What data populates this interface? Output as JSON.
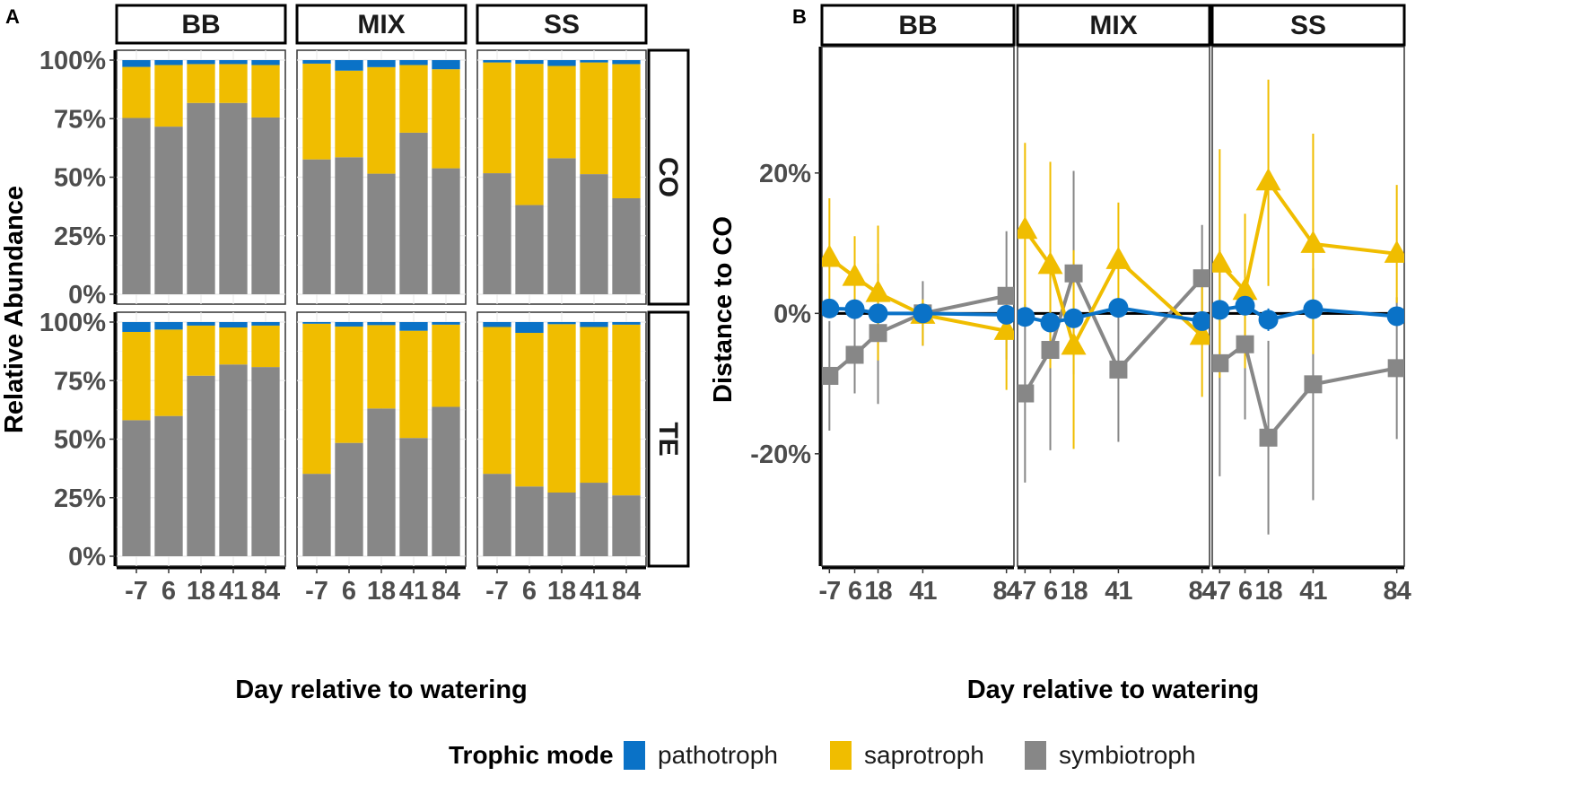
{
  "figure": {
    "panel_a_letter": "A",
    "panel_b_letter": "B"
  },
  "colors": {
    "pathotroph": "#0a72c7",
    "saprotroph": "#f0bd00",
    "symbiotroph": "#878787",
    "zero_line": "#000000"
  },
  "legend": {
    "title": "Trophic mode",
    "items": [
      {
        "key": "pathotroph",
        "label": "pathotroph"
      },
      {
        "key": "saprotroph",
        "label": "saprotroph"
      },
      {
        "key": "symbiotroph",
        "label": "symbiotroph"
      }
    ],
    "position": "bottom"
  },
  "chart_data": [
    {
      "type": "bar",
      "stacked": true,
      "panel": "A",
      "xlabel": "Day relative to watering",
      "ylabel": "Relative Abundance",
      "ylim": [
        0,
        100
      ],
      "y_ticks": [
        "0%",
        "25%",
        "50%",
        "75%",
        "100%"
      ],
      "categories": [
        "-7",
        "6",
        "18",
        "41",
        "84"
      ],
      "facet_columns": [
        "BB",
        "MIX",
        "SS"
      ],
      "facet_rows": [
        "CO",
        "TE"
      ],
      "units": "percent",
      "facets": [
        {
          "col": "BB",
          "row": "CO",
          "series": [
            {
              "name": "symbiotroph",
              "values": [
                75.3,
                71.6,
                81.7,
                81.7,
                75.5
              ]
            },
            {
              "name": "saprotroph",
              "values": [
                21.8,
                26.3,
                16.6,
                16.6,
                22.4
              ]
            },
            {
              "name": "pathotroph",
              "values": [
                2.9,
                2.1,
                1.7,
                1.7,
                2.1
              ]
            }
          ]
        },
        {
          "col": "MIX",
          "row": "CO",
          "series": [
            {
              "name": "symbiotroph",
              "values": [
                57.6,
                58.5,
                51.5,
                69.0,
                53.8
              ]
            },
            {
              "name": "saprotroph",
              "values": [
                40.9,
                37.0,
                45.5,
                28.9,
                42.3
              ]
            },
            {
              "name": "pathotroph",
              "values": [
                1.5,
                4.5,
                3.0,
                2.1,
                3.9
              ]
            }
          ]
        },
        {
          "col": "SS",
          "row": "CO",
          "series": [
            {
              "name": "symbiotroph",
              "values": [
                51.7,
                38.1,
                58.1,
                51.3,
                41.0
              ]
            },
            {
              "name": "saprotroph",
              "values": [
                47.3,
                60.3,
                39.4,
                47.7,
                57.3
              ]
            },
            {
              "name": "pathotroph",
              "values": [
                1.0,
                1.6,
                2.5,
                1.0,
                1.7
              ]
            }
          ]
        },
        {
          "col": "BB",
          "row": "TE",
          "series": [
            {
              "name": "symbiotroph",
              "values": [
                58.1,
                59.9,
                77.1,
                81.9,
                80.8
              ]
            },
            {
              "name": "saprotroph",
              "values": [
                37.7,
                36.9,
                21.4,
                15.8,
                17.7
              ]
            },
            {
              "name": "pathotroph",
              "values": [
                4.2,
                3.2,
                1.5,
                2.3,
                1.5
              ]
            }
          ]
        },
        {
          "col": "MIX",
          "row": "TE",
          "series": [
            {
              "name": "symbiotroph",
              "values": [
                35.2,
                48.4,
                63.1,
                50.5,
                63.8
              ]
            },
            {
              "name": "saprotroph",
              "values": [
                64.1,
                49.7,
                35.6,
                45.8,
                35.1
              ]
            },
            {
              "name": "pathotroph",
              "values": [
                0.7,
                1.9,
                1.3,
                3.7,
                1.1
              ]
            }
          ]
        },
        {
          "col": "SS",
          "row": "TE",
          "series": [
            {
              "name": "symbiotroph",
              "values": [
                35.2,
                29.8,
                27.2,
                31.4,
                26.0
              ]
            },
            {
              "name": "saprotroph",
              "values": [
                62.7,
                65.6,
                71.9,
                66.5,
                72.9
              ]
            },
            {
              "name": "pathotroph",
              "values": [
                2.1,
                4.6,
                0.9,
                2.1,
                1.1
              ]
            }
          ]
        }
      ]
    },
    {
      "type": "line",
      "panel": "B",
      "xlabel": "Day relative to watering",
      "ylabel": "Distance to CO",
      "ylim": [
        -36,
        38
      ],
      "xlim": [
        -9,
        86
      ],
      "y_ticks": [
        {
          "value": -20,
          "label": "-20%"
        },
        {
          "value": 0,
          "label": "0%"
        },
        {
          "value": 20,
          "label": "20%"
        }
      ],
      "x": [
        -7,
        6,
        18,
        41,
        84
      ],
      "x_tick_labels": [
        "-7",
        "6",
        "18",
        "41",
        "84"
      ],
      "reference_line": 0,
      "units": "percent",
      "facets": [
        {
          "col": "BB",
          "series": [
            {
              "name": "pathotroph",
              "marker": "circle",
              "values": [
                0.7,
                0.6,
                0.0,
                0.0,
                -0.2
              ],
              "err_low": [
                -0.5,
                -0.6,
                -1.0,
                -1.0,
                -1.2
              ],
              "err_high": [
                1.9,
                1.8,
                1.0,
                1.0,
                0.8
              ]
            },
            {
              "name": "saprotroph",
              "marker": "triangle",
              "values": [
                7.9,
                5.2,
                2.9,
                -0.2,
                -2.5
              ],
              "err_low": [
                -0.5,
                -0.6,
                -6.7,
                -4.6,
                -10.9
              ],
              "err_high": [
                16.4,
                11.0,
                12.5,
                2.0,
                2.4
              ]
            },
            {
              "name": "symbiotroph",
              "marker": "square",
              "values": [
                -8.9,
                -5.9,
                -2.8,
                0.0,
                2.5
              ],
              "err_low": [
                -16.7,
                -11.4,
                -12.9,
                -4.6,
                -6.6
              ],
              "err_high": [
                -1.1,
                -0.4,
                7.1,
                4.6,
                11.7
              ]
            }
          ]
        },
        {
          "col": "MIX",
          "series": [
            {
              "name": "pathotroph",
              "marker": "circle",
              "values": [
                -0.5,
                -1.3,
                -0.7,
                0.8,
                -1.1
              ],
              "err_low": [
                -1.6,
                -2.4,
                -1.8,
                -0.3,
                -2.2
              ],
              "err_high": [
                0.6,
                -0.2,
                0.4,
                1.9,
                0.0
              ]
            },
            {
              "name": "saprotroph",
              "marker": "triangle",
              "values": [
                11.9,
                6.9,
                -4.6,
                7.6,
                -3.2
              ],
              "err_low": [
                -0.5,
                -7.8,
                -19.3,
                -0.6,
                -11.9
              ],
              "err_high": [
                24.3,
                21.6,
                9.0,
                15.8,
                5.5
              ]
            },
            {
              "name": "symbiotroph",
              "marker": "square",
              "values": [
                -11.4,
                -5.2,
                5.7,
                -8.0,
                5.0
              ],
              "err_low": [
                -24.1,
                -19.5,
                -8.7,
                -18.3,
                -2.6
              ],
              "err_high": [
                1.3,
                9.2,
                20.3,
                2.3,
                12.6
              ]
            }
          ]
        },
        {
          "col": "SS",
          "series": [
            {
              "name": "pathotroph",
              "marker": "circle",
              "values": [
                0.5,
                1.1,
                -0.9,
                0.6,
                -0.4
              ],
              "err_low": [
                -0.6,
                0.0,
                -2.5,
                -0.5,
                -1.5
              ],
              "err_high": [
                1.6,
                2.2,
                0.7,
                1.7,
                0.7
              ]
            },
            {
              "name": "saprotroph",
              "marker": "triangle",
              "values": [
                7.1,
                3.2,
                18.8,
                9.9,
                8.5
              ],
              "err_low": [
                -9.2,
                -7.8,
                3.9,
                -5.8,
                1.5
              ],
              "err_high": [
                23.4,
                14.2,
                33.3,
                25.6,
                18.3
              ]
            },
            {
              "name": "symbiotroph",
              "marker": "square",
              "values": [
                -7.1,
                -4.4,
                -17.7,
                -10.1,
                -7.8
              ],
              "err_low": [
                -23.2,
                -15.1,
                -31.5,
                -26.6,
                -17.9
              ],
              "err_high": [
                9.0,
                6.3,
                -3.9,
                6.4,
                2.3
              ]
            }
          ]
        }
      ]
    }
  ]
}
